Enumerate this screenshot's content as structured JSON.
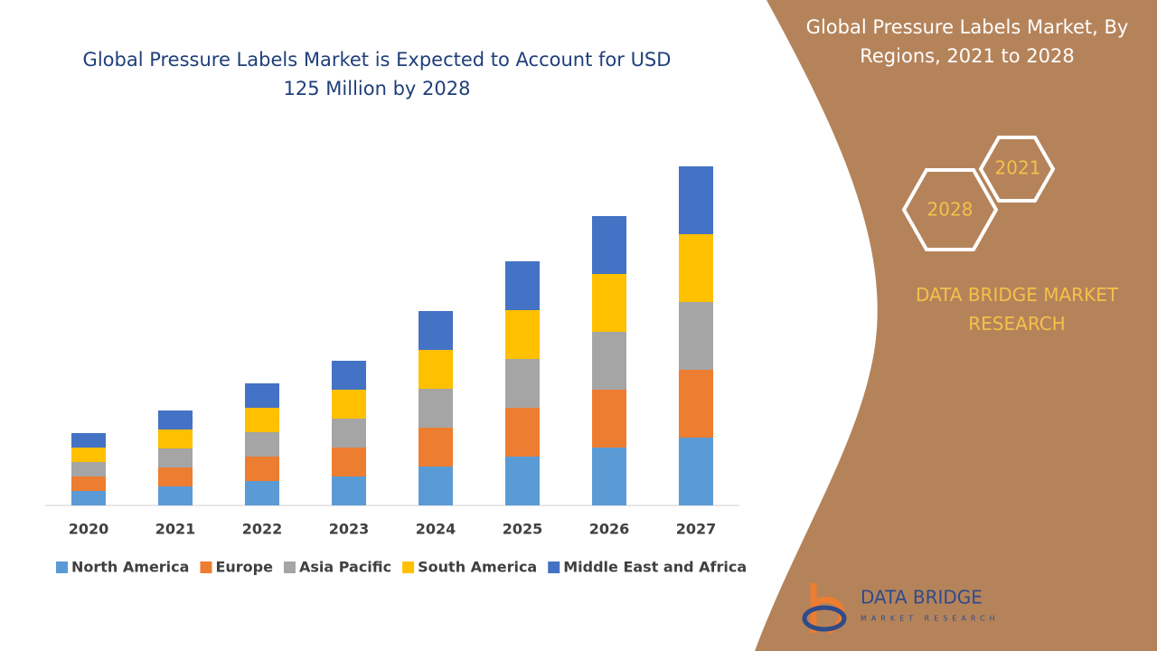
{
  "chart_data": {
    "type": "stacked_bar",
    "title": "Global Pressure Labels Market is Expected to Account for USD 125 Million by 2028",
    "categories": [
      "2020",
      "2021",
      "2022",
      "2023",
      "2024",
      "2025",
      "2026",
      "2027"
    ],
    "series": [
      {
        "name": "North America",
        "color": "#5b9bd5",
        "values": [
          16,
          21,
          27,
          32,
          43,
          54,
          64,
          75
        ]
      },
      {
        "name": "Europe",
        "color": "#ed7d31",
        "values": [
          16,
          21,
          27,
          32,
          43,
          54,
          64,
          75
        ]
      },
      {
        "name": "Asia Pacific",
        "color": "#a5a5a5",
        "values": [
          16,
          21,
          27,
          32,
          43,
          54,
          64,
          75
        ]
      },
      {
        "name": "South America",
        "color": "#ffc000",
        "values": [
          16,
          21,
          27,
          32,
          43,
          54,
          64,
          75
        ]
      },
      {
        "name": "Middle East and Africa",
        "color": "#4472c4",
        "values": [
          16,
          21,
          27,
          32,
          43,
          54,
          64,
          75
        ]
      }
    ]
  },
  "panel": {
    "title": "Global Pressure Labels Market, By Regions, 2021 to 2028",
    "hexagons": [
      "2021",
      "2028"
    ],
    "brand": "DATA BRIDGE MARKET RESEARCH",
    "logo": {
      "name": "DATA BRIDGE",
      "tagline": "MARKET RESEARCH"
    }
  }
}
